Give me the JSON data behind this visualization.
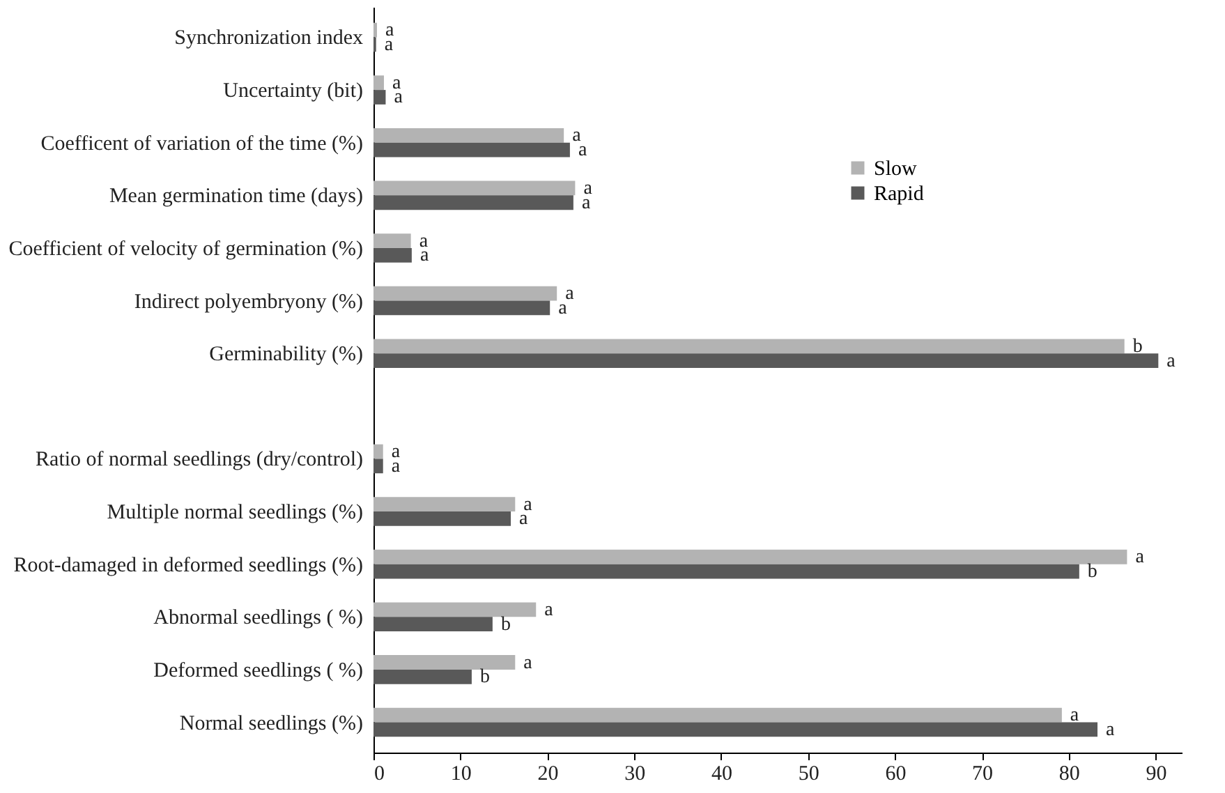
{
  "chart_data": {
    "type": "bar",
    "orientation": "horizontal",
    "categories": [
      "Synchronization index",
      "Uncertainty (bit)",
      "Coefficent of variation of the time (%)",
      "Mean germination time (days)",
      "Coefficient of velocity of germination (%)",
      "Indirect polyembryony (%)",
      "Germinability (%)",
      null,
      "Ratio of normal seedlings (dry/control)",
      "Multiple normal seedlings (%)",
      "Root-damaged in deformed seedlings (%)",
      "Abnormal seedlings ( %)",
      "Deformed seedlings ( %)",
      "Normal seedlings (%)"
    ],
    "series": [
      {
        "name": "Slow",
        "color": "#b3b3b3",
        "values": [
          0.4,
          1.2,
          21.9,
          23.2,
          4.3,
          21.1,
          86.4,
          null,
          1.1,
          16.3,
          86.7,
          18.7,
          16.3,
          79.2
        ],
        "value_labels": [
          "a",
          "a",
          "a",
          "a",
          "a",
          "a",
          "b",
          null,
          "a",
          "a",
          "a",
          "a",
          "a",
          "a"
        ]
      },
      {
        "name": "Rapid",
        "color": "#595959",
        "values": [
          0.3,
          1.4,
          22.6,
          23.0,
          4.4,
          20.3,
          90.3,
          null,
          1.1,
          15.8,
          81.2,
          13.7,
          11.3,
          83.3
        ],
        "value_labels": [
          "a",
          "a",
          "a",
          "a",
          "a",
          "a",
          "a",
          null,
          "a",
          "a",
          "b",
          "b",
          "b",
          "a"
        ]
      }
    ],
    "xlim": [
      0,
      93
    ],
    "xticks": [
      0,
      10,
      20,
      30,
      40,
      50,
      60,
      70,
      80,
      90
    ],
    "legend": "top right",
    "grid": false
  }
}
